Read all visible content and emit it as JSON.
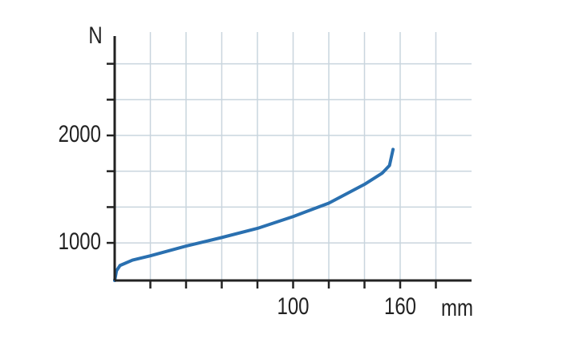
{
  "chart_data": {
    "type": "line",
    "x_label": "mm",
    "y_label": "N",
    "x": [
      0,
      1,
      3,
      10,
      20,
      40,
      60,
      80,
      100,
      120,
      140,
      150,
      154,
      156
    ],
    "series": [
      {
        "color": "#2a70b0",
        "values": [
          650,
          740,
          790,
          840,
          880,
          970,
          1050,
          1135,
          1245,
          1370,
          1545,
          1650,
          1720,
          1870
        ]
      }
    ],
    "xlim": [
      0,
      200
    ],
    "xticks": [
      100,
      160
    ],
    "x_minor_ticks": [
      20,
      40,
      60,
      80,
      120,
      140,
      180
    ],
    "ylim": [
      650,
      2925
    ],
    "yticks": [
      1000,
      2000
    ],
    "y_minor_ticks": [
      1333,
      1667,
      2333,
      2667
    ],
    "grid": true,
    "grid_color": "#c9d5de"
  }
}
